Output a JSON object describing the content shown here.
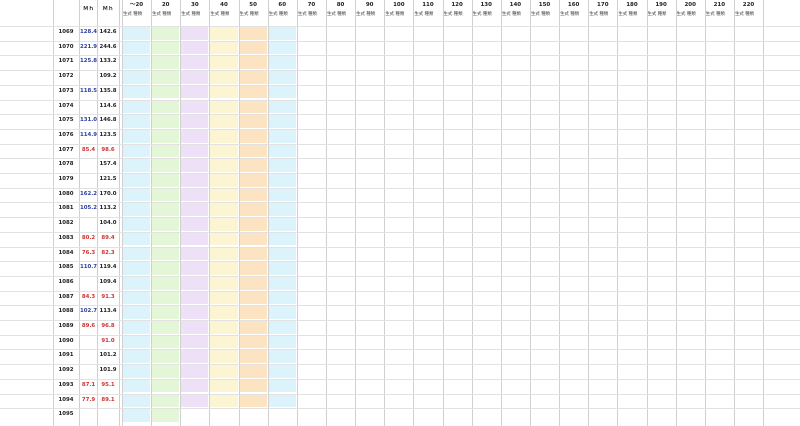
{
  "header": {
    "row_label": "",
    "col_a": "Ｍｈ",
    "col_b": "Ｍｈ",
    "top_brackets": [
      "～20",
      "20",
      "30",
      "40",
      "50",
      "60",
      "70",
      "80",
      "90",
      "100",
      "110",
      "120",
      "130",
      "140",
      "150",
      "160",
      "170",
      "180",
      "190",
      "200",
      "210",
      "220"
    ],
    "sub_label": "生式 種類"
  },
  "rows": [
    {
      "label": "",
      "num": "1069",
      "a": "128.4",
      "b": "142.6"
    },
    {
      "label": "",
      "num": "1070",
      "a": "221.9",
      "b": "244.6"
    },
    {
      "label": "",
      "num": "1071",
      "a": "125.8",
      "b": "133.2"
    },
    {
      "label": "",
      "num": "1072",
      "a": "",
      "b": "109.2"
    },
    {
      "label": "",
      "num": "1073",
      "a": "118.5",
      "b": "135.8"
    },
    {
      "label": "",
      "num": "1074",
      "a": "",
      "b": "114.6"
    },
    {
      "label": "",
      "num": "1075",
      "a": "131.0",
      "b": "146.8"
    },
    {
      "label": "",
      "num": "1076",
      "a": "114.9",
      "b": "123.5"
    },
    {
      "label": "",
      "num": "1077",
      "a": "85.4",
      "b": "98.6"
    },
    {
      "label": "",
      "num": "1078",
      "a": "",
      "b": "157.4"
    },
    {
      "label": "",
      "num": "1079",
      "a": "",
      "b": "121.5"
    },
    {
      "label": "",
      "num": "1080",
      "a": "162.2",
      "b": "170.0"
    },
    {
      "label": "",
      "num": "1081",
      "a": "105.2",
      "b": "113.2"
    },
    {
      "label": "",
      "num": "1082",
      "a": "",
      "b": "104.0"
    },
    {
      "label": "",
      "num": "1083",
      "a": "80.2",
      "b": "89.4"
    },
    {
      "label": "",
      "num": "1084",
      "a": "76.3",
      "b": "82.3"
    },
    {
      "label": "",
      "num": "1085",
      "a": "110.7",
      "b": "119.4"
    },
    {
      "label": "",
      "num": "1086",
      "a": "",
      "b": "109.4"
    },
    {
      "label": "",
      "num": "1087",
      "a": "84.3",
      "b": "91.3"
    },
    {
      "label": "",
      "num": "1088",
      "a": "102.7",
      "b": "113.4"
    },
    {
      "label": "",
      "num": "1089",
      "a": "89.6",
      "b": "96.8"
    },
    {
      "label": "",
      "num": "1090",
      "a": "",
      "b": "91.0"
    },
    {
      "label": "",
      "num": "1091",
      "a": "",
      "b": "101.2"
    },
    {
      "label": "",
      "num": "1092",
      "a": "",
      "b": "101.9"
    },
    {
      "label": "",
      "num": "1093",
      "a": "87.1",
      "b": "95.1"
    },
    {
      "label": "",
      "num": "1094",
      "a": "77.9",
      "b": "89.1"
    },
    {
      "label": "",
      "num": "1095",
      "a": "",
      "b": ""
    }
  ],
  "colors": {
    "cyan": "#bfe9f7",
    "green": "#cdeeb8",
    "purple": "#e0c6ef",
    "yellow": "#f8ecb0",
    "orange": "#f9cd90",
    "red_text": "#d23030",
    "blue_text": "#2b3f9c",
    "dark_text": "#222222"
  }
}
